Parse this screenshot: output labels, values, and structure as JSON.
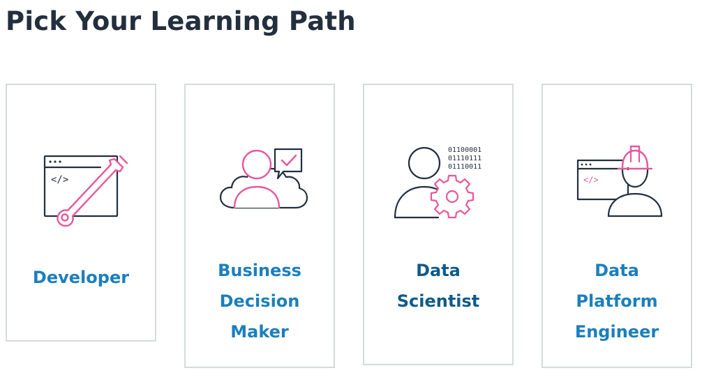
{
  "header": {
    "title": "Pick Your Learning Path"
  },
  "colors": {
    "title": "#232f3e",
    "link": "#1b7fbd",
    "link_hover": "#0e5a8a",
    "card_border": "#d5dbdb",
    "icon_stroke": "#232f3e",
    "icon_accent": "#e7579a"
  },
  "cards": [
    {
      "label": "Developer",
      "icon": "code-window-wrench-icon"
    },
    {
      "label": "Business\nDecision\nMaker",
      "icon": "person-cloud-chat-check-icon"
    },
    {
      "label": "Data\nScientist",
      "icon": "person-binary-gear-icon",
      "binary": [
        "01100001",
        "01110111",
        "01110011"
      ]
    },
    {
      "label": "Data\nPlatform\nEngineer",
      "icon": "engineer-hardhat-code-window-icon",
      "code_glyph": "</>"
    }
  ],
  "developer_code_glyph": "</>"
}
